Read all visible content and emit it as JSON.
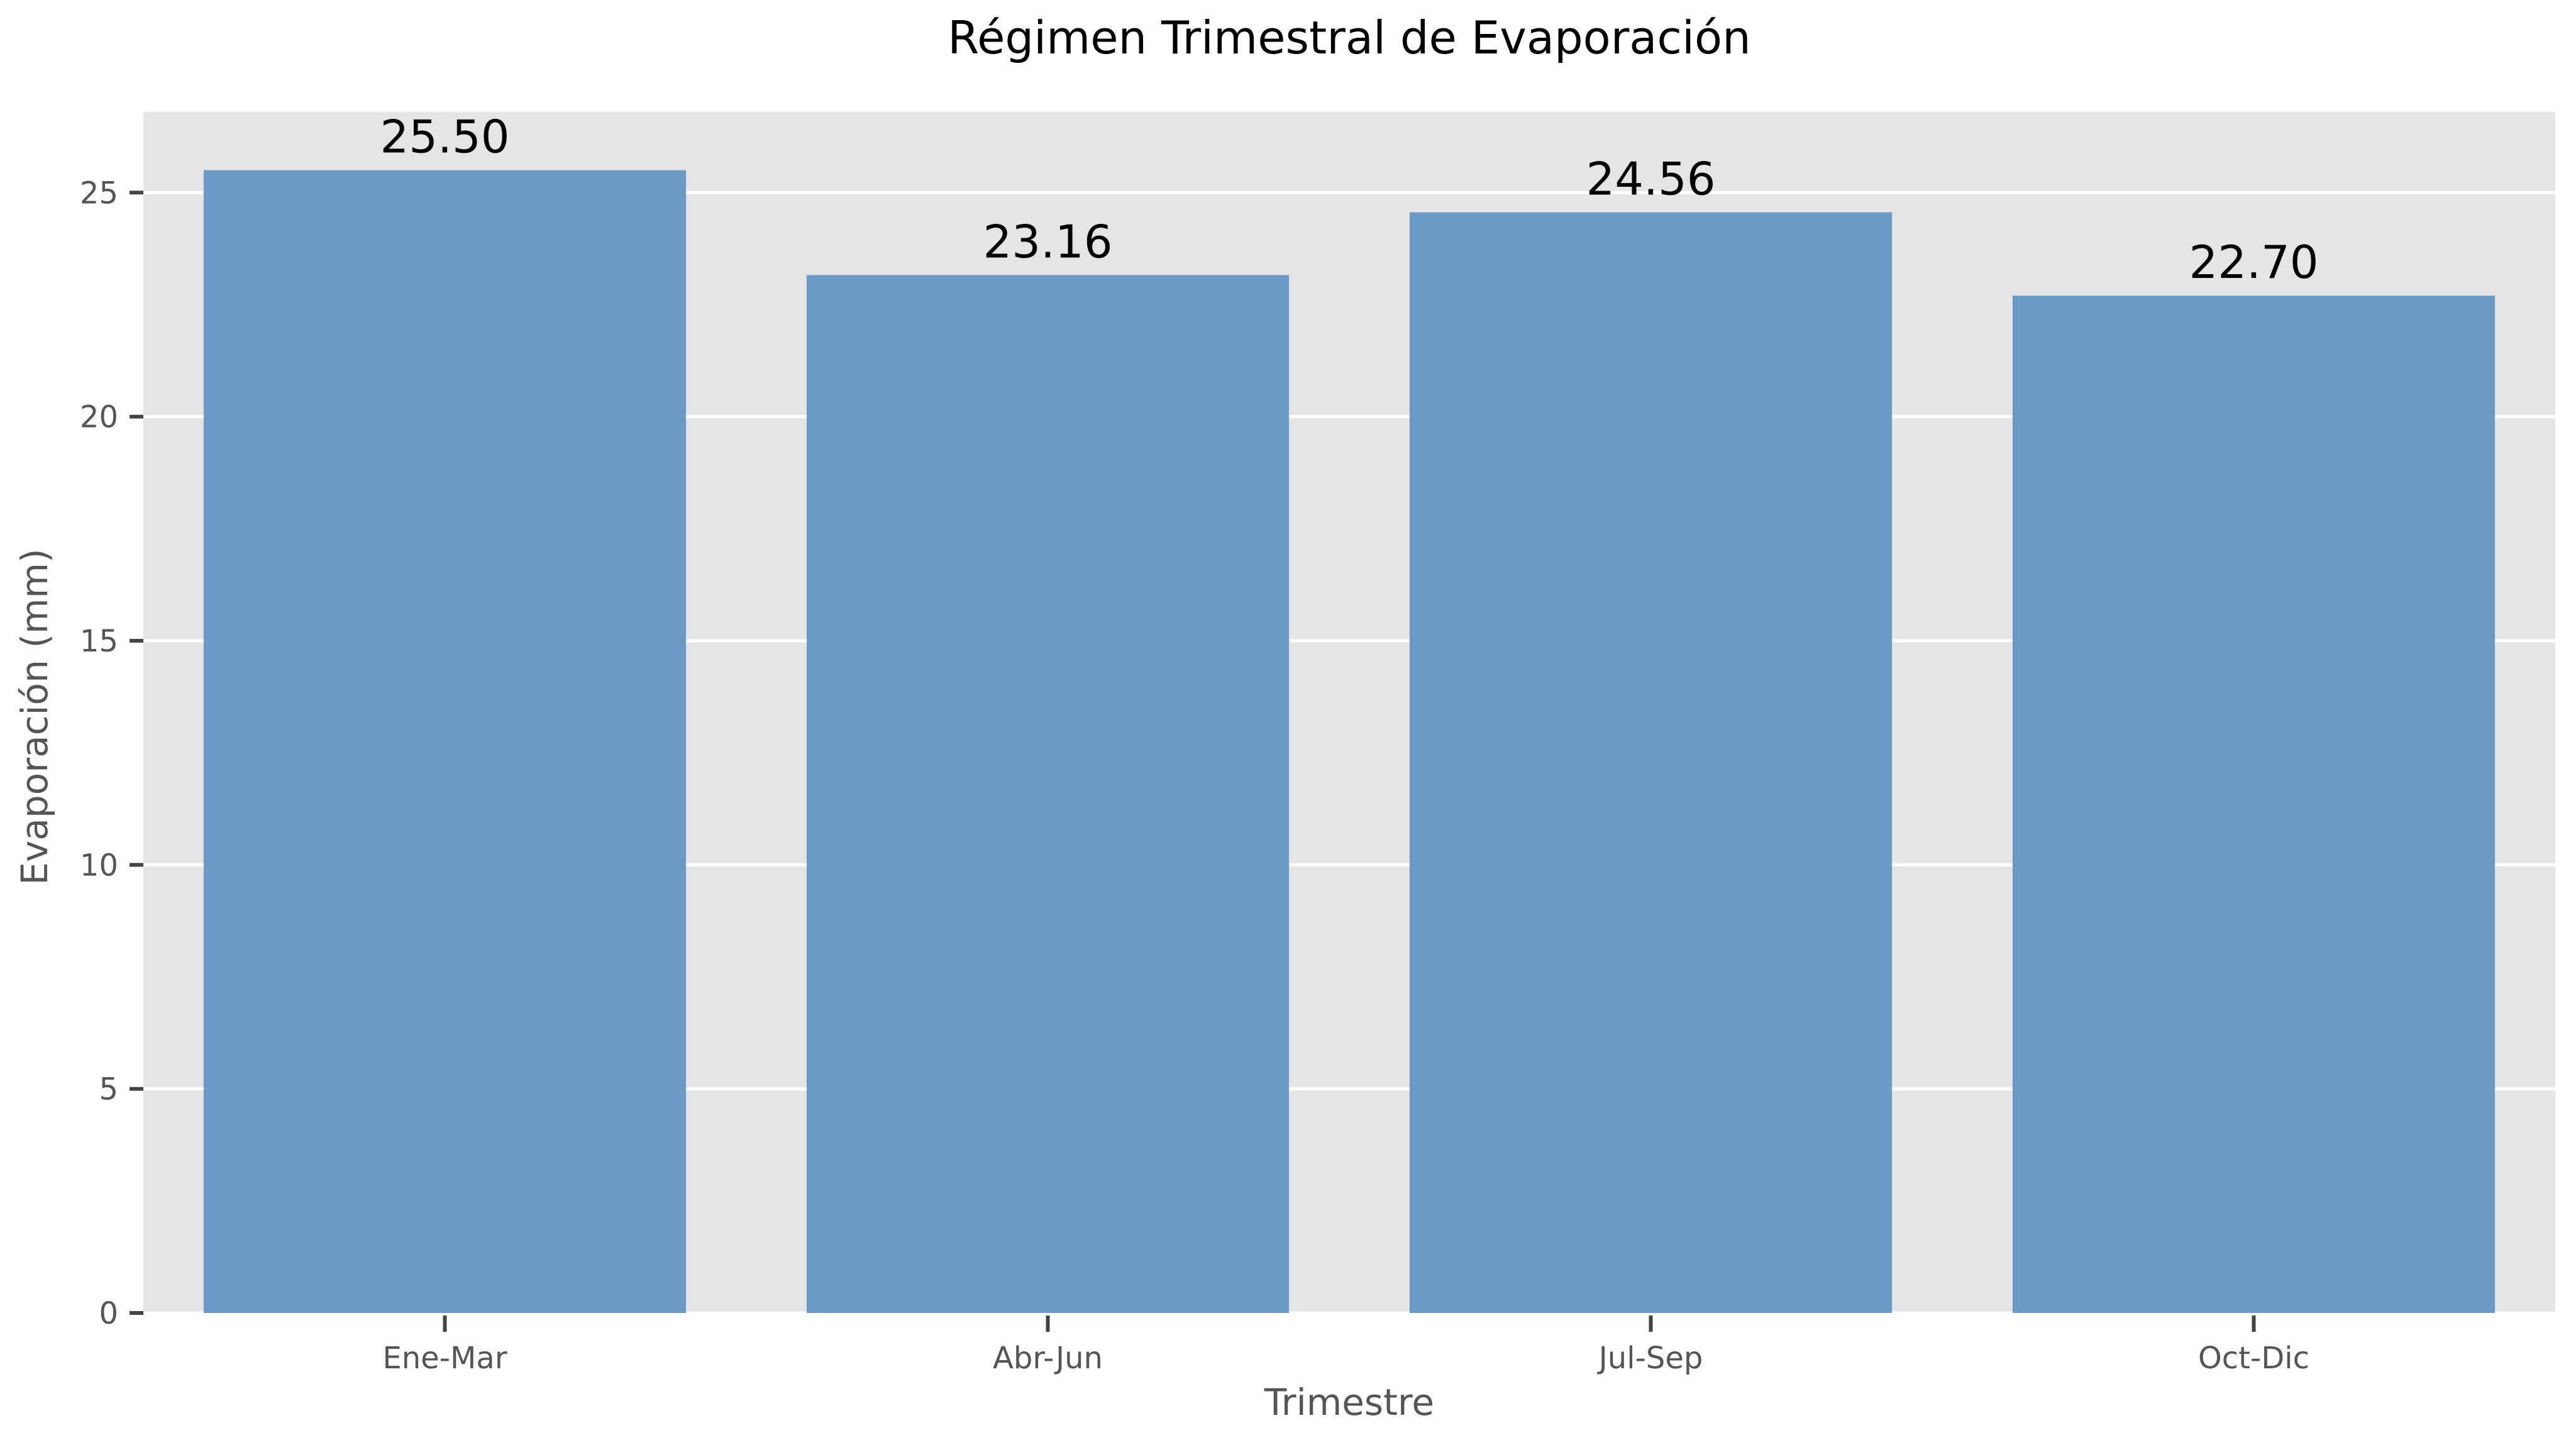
{
  "chart_data": {
    "type": "bar",
    "title": "Régimen Trimestral de Evaporación",
    "xlabel": "Trimestre",
    "ylabel": "Evaporación (mm)",
    "categories": [
      "Ene-Mar",
      "Abr-Jun",
      "Jul-Sep",
      "Oct-Dic"
    ],
    "values": [
      25.5,
      23.16,
      24.56,
      22.7
    ],
    "data_labels": [
      "25.50",
      "23.16",
      "24.56",
      "22.70"
    ],
    "ylim": [
      0,
      26.8
    ],
    "yticks": [
      0,
      5,
      10,
      15,
      20,
      25
    ],
    "grid": true,
    "legend": "none",
    "colors": {
      "bar": "#6a9bc7",
      "plot_background": "#e5e5e5",
      "grid": "#ffffff",
      "tick": "#444444"
    }
  }
}
